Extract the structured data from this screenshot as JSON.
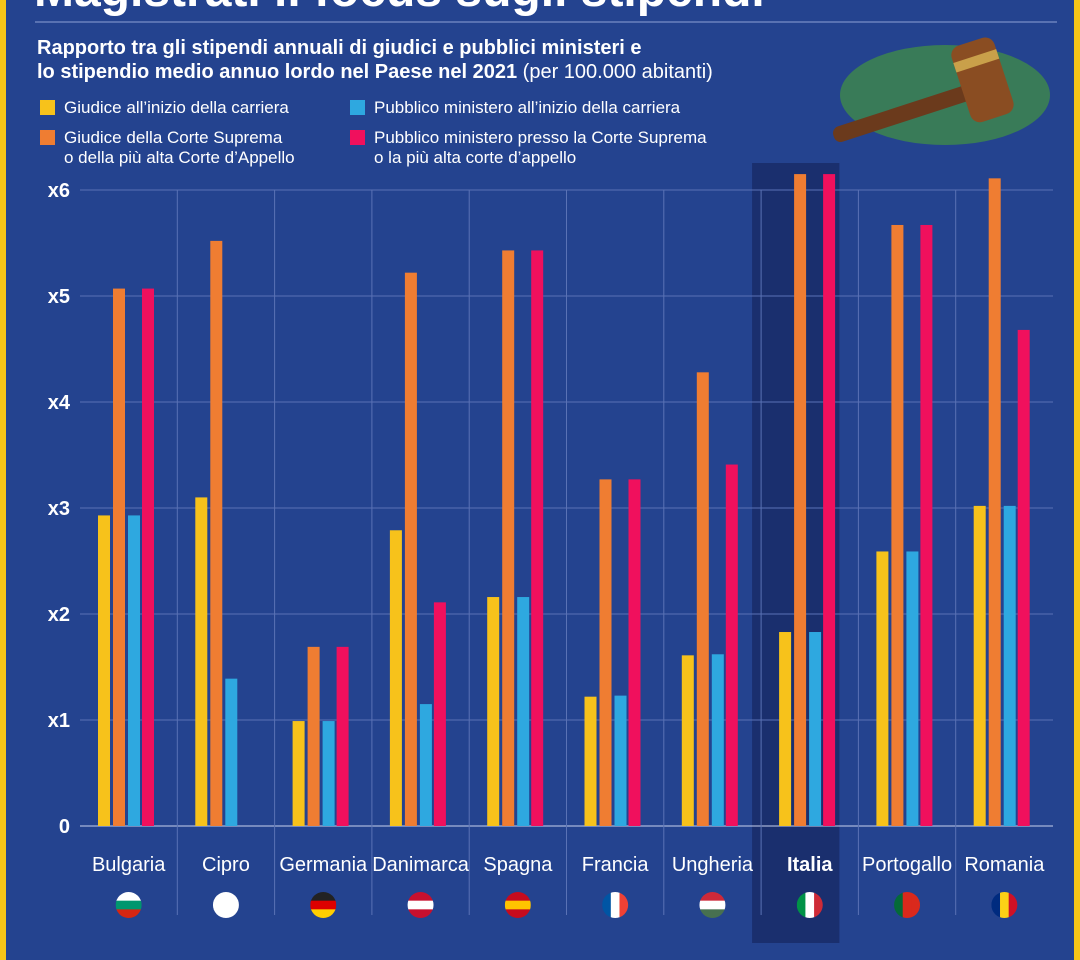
{
  "chart_data": {
    "type": "bar",
    "title": "Magistrati il focus sugli stipendi",
    "subtitle": "Rapporto tra gli stipendi annuali di giudici e pubblici ministeri e\nlo stipendio medio annuo lordo nel Paese nel 2021",
    "note": "(per 100.000 abitanti)",
    "categories": [
      "Bulgaria",
      "Cipro",
      "Germania",
      "Danimarca",
      "Spagna",
      "Francia",
      "Ungheria",
      "Italia",
      "Portogallo",
      "Romania"
    ],
    "highlight": "Italia",
    "series": [
      {
        "name": "Giudice all’inizio della carriera",
        "color": "#f7c21b",
        "values": [
          2.93,
          3.1,
          0.99,
          2.79,
          2.16,
          1.22,
          1.61,
          1.83,
          2.59,
          3.02
        ]
      },
      {
        "name": "Giudice della Corte Suprema\no della più alta Corte d’Appello",
        "color": "#ef7d32",
        "values": [
          5.07,
          5.52,
          1.69,
          5.22,
          5.43,
          3.27,
          4.28,
          6.15,
          5.67,
          6.11
        ]
      },
      {
        "name": "Pubblico ministero all’inizio della carriera",
        "color": "#2ea8e0",
        "values": [
          2.93,
          1.39,
          0.99,
          1.15,
          2.16,
          1.23,
          1.62,
          1.83,
          2.59,
          3.02
        ]
      },
      {
        "name": "Pubblico ministero presso la Corte Suprema\no la più alta corte d’appello",
        "color": "#f0105d",
        "values": [
          5.07,
          null,
          1.69,
          2.11,
          5.43,
          3.27,
          3.41,
          6.15,
          5.67,
          4.68
        ]
      }
    ],
    "ylim": [
      0,
      6
    ],
    "yticks": [
      0,
      {
        "value": 1,
        "label": "x1"
      },
      {
        "value": 2,
        "label": "x2"
      },
      {
        "value": 3,
        "label": "x3"
      },
      {
        "value": 4,
        "label": "x4"
      },
      {
        "value": 5,
        "label": "x5"
      },
      {
        "value": 6,
        "label": "x6"
      }
    ],
    "grid": true
  }
}
